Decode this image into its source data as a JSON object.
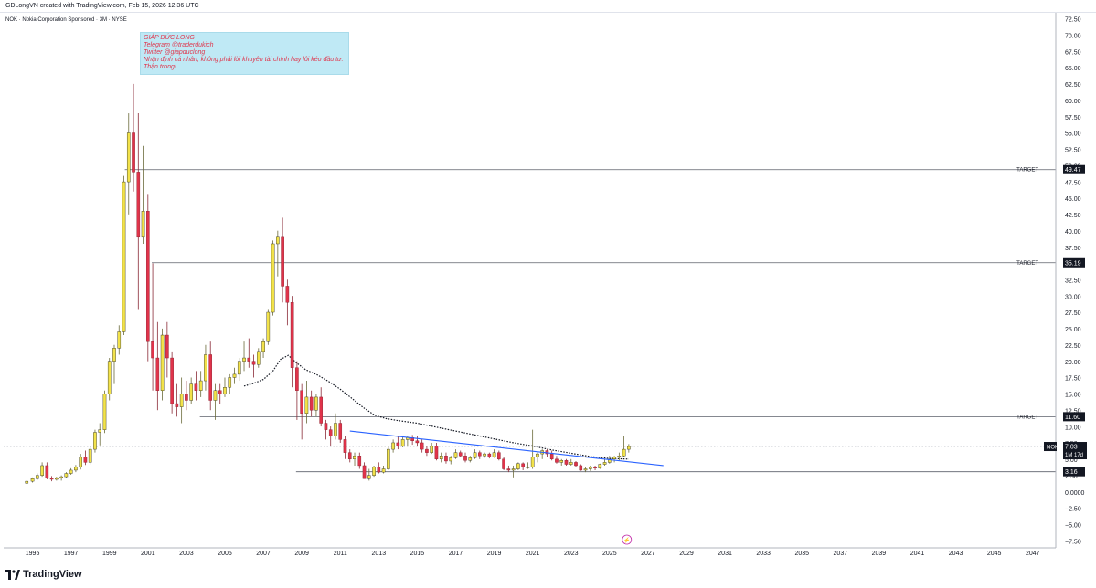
{
  "header": {
    "credit": "GDLongVN created with TradingView.com, Feb 15, 2026 12:36 UTC",
    "symbol_line": "NOK · Nokia Corporation Sponsored · 3M · NYSE"
  },
  "note": {
    "lines": [
      "GIÁP ĐỨC LONG",
      "Telegram @traderdukich",
      "Twitter @giapduclong",
      "Nhận định cá nhân, không phải lời khuyên tài chính hay lôi kéo đầu tư.",
      "Thận trọng!"
    ]
  },
  "footer": {
    "brand": "TradingView"
  },
  "colors": {
    "up": "#f2e24a",
    "down": "#e0334a",
    "ema": "#131722",
    "trend": "#2962ff",
    "label_bg": "#131722",
    "note_bg": "#bfe9f5",
    "note_text": "#e0334a"
  },
  "chart_data": {
    "type": "candlestick",
    "interval": "3M",
    "symbol": "NOK",
    "y_axis": {
      "min": -8.5,
      "max": 73.5,
      "side": "right",
      "ticks": [
        72.5,
        70.0,
        67.5,
        65.0,
        62.5,
        60.0,
        57.5,
        55.0,
        52.5,
        50.0,
        47.5,
        45.0,
        42.5,
        40.0,
        37.5,
        35.0,
        32.5,
        30.0,
        27.5,
        25.0,
        22.5,
        20.0,
        17.5,
        15.0,
        12.5,
        10.0,
        7.5,
        5.0,
        2.5,
        0.0,
        -2.5,
        -5.0,
        -7.5
      ],
      "tick_labels": [
        "72.50",
        "70.00",
        "67.50",
        "65.00",
        "62.50",
        "60.00",
        "57.50",
        "55.00",
        "52.50",
        "50.00",
        "47.50",
        "45.00",
        "42.50",
        "40.00",
        "37.50",
        "35.00",
        "32.50",
        "30.00",
        "27.50",
        "25.00",
        "22.50",
        "20.00",
        "17.50",
        "15.00",
        "12.50",
        "10.00",
        "7.50",
        "5.00",
        "2.50",
        "0.0000",
        "−2.50",
        "−5.00",
        "−7.50"
      ]
    },
    "x_axis": {
      "min": 1993.5,
      "max": 2048.2,
      "ticks": [
        "1995",
        "1997",
        "1999",
        "2001",
        "2003",
        "2005",
        "2007",
        "2009",
        "2011",
        "2013",
        "2015",
        "2017",
        "2019",
        "2021",
        "2023",
        "2025",
        "2027",
        "2029",
        "2031",
        "2033",
        "2035",
        "2037",
        "2039",
        "2041",
        "2043",
        "2045",
        "2047"
      ]
    },
    "candles": [
      [
        1994.7,
        1.4,
        1.8,
        1.3,
        1.7
      ],
      [
        1995.0,
        1.7,
        2.3,
        1.5,
        2.1
      ],
      [
        1995.25,
        2.1,
        2.9,
        1.9,
        2.6
      ],
      [
        1995.5,
        2.6,
        4.6,
        2.4,
        4.1
      ],
      [
        1995.75,
        4.1,
        4.6,
        2.0,
        2.2
      ],
      [
        1996.0,
        2.2,
        2.5,
        1.7,
        2.0
      ],
      [
        1996.25,
        2.0,
        2.4,
        1.8,
        2.2
      ],
      [
        1996.5,
        2.2,
        2.6,
        1.8,
        2.4
      ],
      [
        1996.75,
        2.4,
        3.1,
        2.2,
        2.9
      ],
      [
        1997.0,
        2.9,
        3.7,
        2.7,
        3.4
      ],
      [
        1997.25,
        3.4,
        4.2,
        3.1,
        3.9
      ],
      [
        1997.5,
        3.9,
        5.9,
        3.5,
        5.4
      ],
      [
        1997.75,
        5.4,
        6.4,
        4.2,
        4.6
      ],
      [
        1998.0,
        4.6,
        7.1,
        4.3,
        6.6
      ],
      [
        1998.25,
        6.6,
        9.6,
        6.1,
        9.2
      ],
      [
        1998.5,
        9.2,
        10.6,
        7.2,
        9.6
      ],
      [
        1998.75,
        9.6,
        15.6,
        9.1,
        15.1
      ],
      [
        1999.0,
        15.1,
        20.6,
        14.1,
        20.1
      ],
      [
        1999.25,
        20.1,
        22.6,
        16.6,
        22.1
      ],
      [
        1999.5,
        22.1,
        25.6,
        21.1,
        24.6
      ],
      [
        1999.75,
        24.6,
        48.5,
        24.1,
        47.6
      ],
      [
        2000.0,
        47.6,
        58.1,
        42.6,
        55.1
      ],
      [
        2000.25,
        55.1,
        62.6,
        46.1,
        49.1
      ],
      [
        2000.5,
        49.1,
        58.1,
        28.1,
        39.1
      ],
      [
        2000.75,
        39.1,
        53.1,
        38.1,
        43.1
      ],
      [
        2001.0,
        43.1,
        45.6,
        20.1,
        23.1
      ],
      [
        2001.25,
        23.1,
        35.1,
        15.6,
        20.6
      ],
      [
        2001.5,
        20.6,
        26.1,
        12.6,
        15.6
      ],
      [
        2001.75,
        15.6,
        25.1,
        14.1,
        24.1
      ],
      [
        2002.0,
        24.1,
        26.1,
        17.6,
        20.6
      ],
      [
        2002.25,
        20.6,
        21.6,
        12.1,
        13.6
      ],
      [
        2002.5,
        13.6,
        16.6,
        11.6,
        13.1
      ],
      [
        2002.75,
        13.1,
        17.6,
        10.6,
        15.1
      ],
      [
        2003.0,
        15.1,
        17.1,
        12.6,
        14.1
      ],
      [
        2003.25,
        14.1,
        17.6,
        13.6,
        16.6
      ],
      [
        2003.5,
        16.6,
        18.6,
        14.1,
        15.6
      ],
      [
        2003.75,
        15.6,
        18.6,
        14.6,
        17.1
      ],
      [
        2004.0,
        17.1,
        22.6,
        15.6,
        21.1
      ],
      [
        2004.25,
        21.1,
        23.1,
        12.6,
        14.1
      ],
      [
        2004.5,
        14.1,
        16.6,
        11.1,
        15.6
      ],
      [
        2004.75,
        15.6,
        16.6,
        13.6,
        15.1
      ],
      [
        2005.0,
        15.1,
        17.6,
        14.6,
        16.1
      ],
      [
        2005.25,
        16.1,
        18.1,
        15.1,
        17.6
      ],
      [
        2005.5,
        17.6,
        19.1,
        16.6,
        18.1
      ],
      [
        2005.75,
        18.1,
        20.6,
        17.1,
        20.1
      ],
      [
        2006.0,
        20.1,
        23.1,
        18.6,
        20.6
      ],
      [
        2006.25,
        20.6,
        23.6,
        19.1,
        20.1
      ],
      [
        2006.5,
        20.1,
        21.1,
        17.6,
        19.6
      ],
      [
        2006.75,
        19.6,
        22.1,
        19.1,
        21.6
      ],
      [
        2007.0,
        21.6,
        23.6,
        20.6,
        23.1
      ],
      [
        2007.25,
        23.1,
        28.1,
        22.6,
        27.6
      ],
      [
        2007.5,
        27.6,
        38.6,
        27.1,
        38.1
      ],
      [
        2007.75,
        38.1,
        40.1,
        33.1,
        39.1
      ],
      [
        2008.0,
        39.1,
        42.1,
        29.1,
        31.6
      ],
      [
        2008.25,
        31.6,
        32.6,
        25.6,
        29.1
      ],
      [
        2008.5,
        29.1,
        30.1,
        16.1,
        19.1
      ],
      [
        2008.75,
        19.1,
        20.1,
        11.1,
        15.6
      ],
      [
        2009.0,
        15.6,
        16.6,
        8.1,
        12.1
      ],
      [
        2009.25,
        12.1,
        17.1,
        10.6,
        14.6
      ],
      [
        2009.5,
        14.6,
        15.6,
        11.6,
        12.6
      ],
      [
        2009.75,
        12.6,
        15.1,
        11.6,
        14.6
      ],
      [
        2010.0,
        14.6,
        16.1,
        10.1,
        10.6
      ],
      [
        2010.25,
        10.6,
        11.1,
        8.1,
        9.6
      ],
      [
        2010.5,
        9.6,
        10.1,
        7.1,
        8.6
      ],
      [
        2010.75,
        8.6,
        12.1,
        8.1,
        10.6
      ],
      [
        2011.0,
        10.6,
        11.1,
        7.6,
        8.1
      ],
      [
        2011.25,
        8.1,
        8.6,
        5.1,
        6.1
      ],
      [
        2011.5,
        6.1,
        6.6,
        4.6,
        5.1
      ],
      [
        2011.75,
        5.1,
        6.1,
        4.1,
        5.6
      ],
      [
        2012.0,
        5.6,
        6.1,
        3.6,
        4.1
      ],
      [
        2012.25,
        4.1,
        4.6,
        2.1,
        2.1
      ],
      [
        2012.5,
        2.1,
        3.6,
        1.8,
        2.6
      ],
      [
        2012.75,
        2.6,
        4.1,
        2.4,
        3.9
      ],
      [
        2013.0,
        3.9,
        4.6,
        2.9,
        3.1
      ],
      [
        2013.25,
        3.1,
        4.1,
        2.9,
        3.6
      ],
      [
        2013.5,
        3.6,
        7.1,
        3.4,
        6.6
      ],
      [
        2013.75,
        6.6,
        8.1,
        6.1,
        7.6
      ],
      [
        2014.0,
        7.6,
        8.6,
        6.6,
        7.1
      ],
      [
        2014.25,
        7.1,
        8.6,
        6.9,
        8.1
      ],
      [
        2014.5,
        8.1,
        8.6,
        7.1,
        8.4
      ],
      [
        2014.75,
        8.4,
        8.8,
        7.3,
        7.9
      ],
      [
        2015.0,
        7.9,
        8.6,
        7.1,
        7.6
      ],
      [
        2015.25,
        7.6,
        8.1,
        6.1,
        6.6
      ],
      [
        2015.5,
        6.6,
        7.1,
        5.6,
        6.1
      ],
      [
        2015.75,
        6.1,
        7.6,
        5.9,
        7.1
      ],
      [
        2016.0,
        7.1,
        7.6,
        4.9,
        5.1
      ],
      [
        2016.25,
        5.1,
        6.1,
        4.6,
        5.6
      ],
      [
        2016.5,
        5.6,
        6.1,
        4.4,
        4.8
      ],
      [
        2016.75,
        4.8,
        5.6,
        4.3,
        5.3
      ],
      [
        2017.0,
        5.3,
        6.6,
        5.1,
        6.1
      ],
      [
        2017.25,
        6.1,
        6.4,
        5.4,
        5.6
      ],
      [
        2017.5,
        5.6,
        6.1,
        4.6,
        4.9
      ],
      [
        2017.75,
        4.9,
        5.6,
        4.6,
        5.3
      ],
      [
        2018.0,
        5.3,
        6.6,
        5.1,
        6.1
      ],
      [
        2018.25,
        6.1,
        6.4,
        5.1,
        5.6
      ],
      [
        2018.5,
        5.6,
        6.1,
        5.3,
        5.9
      ],
      [
        2018.75,
        5.9,
        6.1,
        5.2,
        5.4
      ],
      [
        2019.0,
        5.4,
        6.6,
        5.3,
        6.1
      ],
      [
        2019.25,
        6.1,
        6.4,
        4.9,
        5.1
      ],
      [
        2019.5,
        5.1,
        5.4,
        3.4,
        3.6
      ],
      [
        2019.75,
        3.6,
        4.1,
        3.1,
        3.4
      ],
      [
        2020.0,
        3.4,
        4.1,
        2.3,
        3.6
      ],
      [
        2020.25,
        3.6,
        4.6,
        3.4,
        4.4
      ],
      [
        2020.5,
        4.4,
        4.6,
        3.4,
        3.9
      ],
      [
        2020.75,
        3.9,
        4.6,
        3.6,
        3.9
      ],
      [
        2021.0,
        3.9,
        9.6,
        3.6,
        5.4
      ],
      [
        2021.25,
        5.4,
        6.1,
        4.6,
        5.9
      ],
      [
        2021.5,
        5.9,
        6.6,
        5.1,
        6.4
      ],
      [
        2021.75,
        6.4,
        6.6,
        5.4,
        5.9
      ],
      [
        2022.0,
        5.9,
        6.4,
        4.9,
        5.1
      ],
      [
        2022.25,
        5.1,
        5.6,
        4.4,
        4.6
      ],
      [
        2022.5,
        4.6,
        5.1,
        4.1,
        4.9
      ],
      [
        2022.75,
        4.9,
        5.1,
        4.1,
        4.3
      ],
      [
        2023.0,
        4.3,
        5.1,
        4.1,
        4.6
      ],
      [
        2023.25,
        4.6,
        4.8,
        3.9,
        4.1
      ],
      [
        2023.5,
        4.1,
        4.3,
        3.3,
        3.4
      ],
      [
        2023.75,
        3.4,
        3.9,
        3.1,
        3.6
      ],
      [
        2024.0,
        3.6,
        4.1,
        3.3,
        3.9
      ],
      [
        2024.25,
        3.9,
        4.1,
        3.4,
        3.7
      ],
      [
        2024.5,
        3.7,
        4.4,
        3.6,
        4.3
      ],
      [
        2024.75,
        4.3,
        5.1,
        4.1,
        4.6
      ],
      [
        2025.0,
        4.6,
        5.6,
        4.4,
        5.1
      ],
      [
        2025.25,
        5.1,
        5.6,
        4.6,
        5.4
      ],
      [
        2025.5,
        5.4,
        6.1,
        4.9,
        5.6
      ],
      [
        2025.75,
        5.6,
        8.6,
        5.4,
        6.6
      ],
      [
        2026.0,
        6.6,
        7.4,
        6.1,
        7.03
      ]
    ],
    "ema": [
      [
        2006.0,
        16.3
      ],
      [
        2006.5,
        16.7
      ],
      [
        2007.0,
        17.3
      ],
      [
        2007.5,
        18.6
      ],
      [
        2007.9,
        20.4
      ],
      [
        2008.3,
        21.0
      ],
      [
        2008.7,
        19.9
      ],
      [
        2009.2,
        18.8
      ],
      [
        2009.8,
        18.0
      ],
      [
        2010.4,
        17.0
      ],
      [
        2011.0,
        15.8
      ],
      [
        2011.6,
        14.4
      ],
      [
        2012.2,
        13.0
      ],
      [
        2012.8,
        11.8
      ],
      [
        2013.4,
        11.3
      ],
      [
        2014.0,
        11.0
      ],
      [
        2015.0,
        10.6
      ],
      [
        2016.0,
        10.0
      ],
      [
        2017.0,
        9.4
      ],
      [
        2018.0,
        8.8
      ],
      [
        2019.0,
        8.2
      ],
      [
        2020.0,
        7.6
      ],
      [
        2021.0,
        7.1
      ],
      [
        2022.0,
        6.5
      ],
      [
        2023.0,
        6.0
      ],
      [
        2024.0,
        5.5
      ],
      [
        2025.0,
        5.2
      ],
      [
        2026.0,
        5.1
      ]
    ],
    "trendline": [
      [
        2011.5,
        9.4
      ],
      [
        2027.8,
        4.1
      ]
    ],
    "support_line": {
      "value": 3.16,
      "x_start": 2008.7
    },
    "dotted_price_line": 7.03,
    "targets": [
      {
        "label": "TARGET",
        "value": 49.47,
        "value_label": "49.47",
        "x_start": 1999.8
      },
      {
        "label": "TARGET",
        "value": 35.19,
        "value_label": "35.19",
        "x_start": 2001.2
      },
      {
        "label": "TARGET",
        "value": 11.6,
        "value_label": "11.60",
        "x_start": 2003.7
      }
    ],
    "current": {
      "symbol": "NOK",
      "value": 7.03,
      "value_label": "7.03",
      "countdown": "1M 17d"
    },
    "support_label": "3.16",
    "marker_symbol": "⚡",
    "marker_year": 2025.9,
    "grid": false
  }
}
